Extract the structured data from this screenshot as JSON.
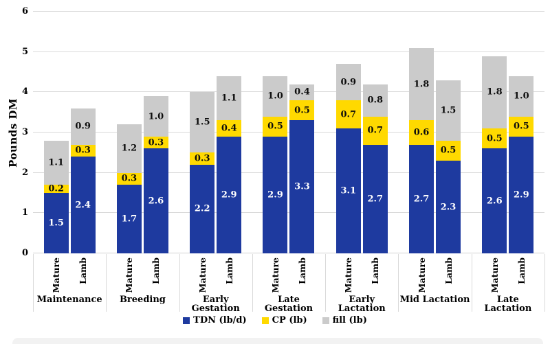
{
  "chart_data": {
    "type": "bar",
    "stacked": true,
    "title": "",
    "ylabel": "Pounds DM",
    "xlabel": "",
    "ylim": [
      0,
      6
    ],
    "ytick_step": 1,
    "grid": "horizontal",
    "legend_position": "bottom",
    "categories": [
      "Maintenance",
      "Breeding",
      "Early Gestation",
      "Late Gestation",
      "Early Lactation",
      "Mid Lactation",
      "Late Lactation"
    ],
    "two_line_categories": [
      "Late Lactation"
    ],
    "bar_labels": [
      "Mature",
      "Lamb"
    ],
    "series": [
      {
        "key": "tdn",
        "name": "TDN (lb/d)",
        "color": "#1e3a9f",
        "label_color": "#ffffff",
        "values": {
          "Mature": [
            1.5,
            1.7,
            2.2,
            2.9,
            3.1,
            2.7,
            2.6
          ],
          "Lamb": [
            2.4,
            2.6,
            2.9,
            3.3,
            2.7,
            2.3,
            2.9
          ]
        }
      },
      {
        "key": "cp",
        "name": "CP (lb)",
        "color": "#ffd900",
        "label_color": "#0d0d0d",
        "values": {
          "Mature": [
            0.2,
            0.3,
            0.3,
            0.5,
            0.7,
            0.6,
            0.5
          ],
          "Lamb": [
            0.3,
            0.3,
            0.4,
            0.5,
            0.7,
            0.5,
            0.5
          ]
        }
      },
      {
        "key": "fill",
        "name": "fill (lb)",
        "color": "#cbcbcb",
        "label_color": "#0d0d0d",
        "values": {
          "Mature": [
            1.1,
            1.2,
            1.5,
            1.0,
            0.9,
            1.8,
            1.8
          ],
          "Lamb": [
            0.9,
            1.0,
            1.1,
            0.4,
            0.8,
            1.5,
            1.0
          ]
        }
      }
    ],
    "colors": {
      "gridline": "#d9d9d9",
      "axis_line": "#d0d0d0",
      "scroll_strip": "#f2f2f2"
    }
  }
}
